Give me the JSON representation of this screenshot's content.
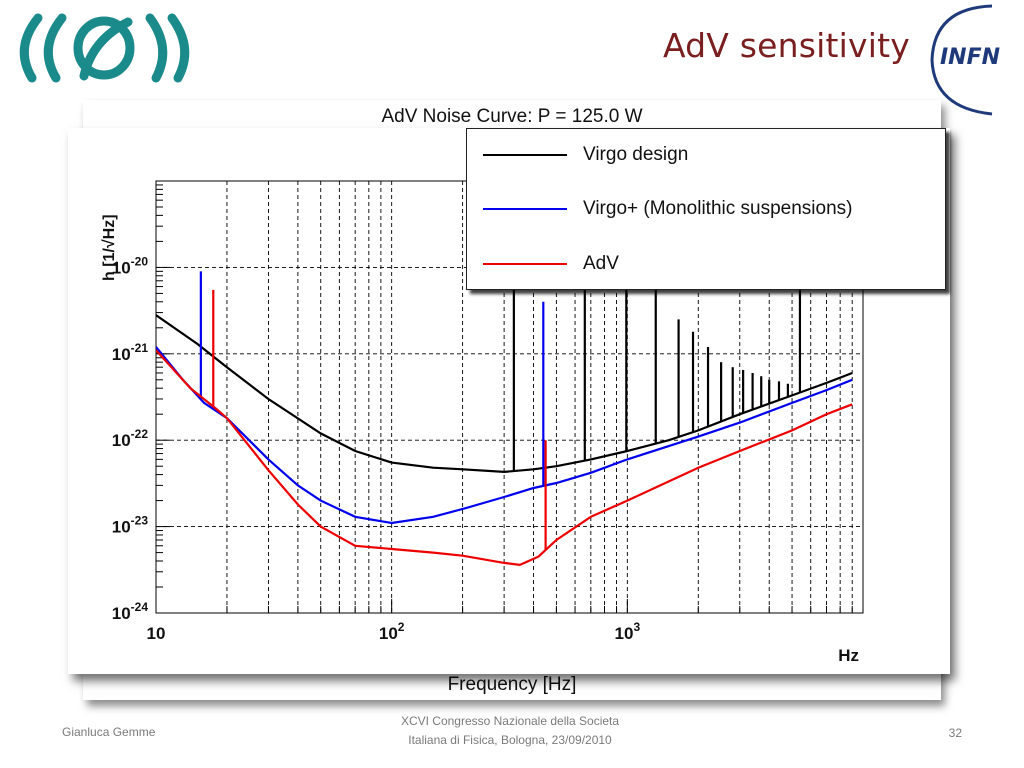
{
  "slide": {
    "title": "AdV sensitivity",
    "footer_author": "Gianluca Gemme",
    "footer_center_line1": "XCVI Congresso Nazionale della Societa",
    "footer_center_line2": "Italiana di Fisica, Bologna, 23/09/2010",
    "page_number": "32",
    "logo_right_text": "INFN"
  },
  "colors": {
    "title": "#7a1f1f",
    "virgo_logo": "#1a8a8a",
    "infn_logo": "#1f3a7a"
  },
  "background_chart": {
    "title": "AdV Noise Curve: P   = 125.0 W",
    "xlabel": "Frequency [Hz]"
  },
  "chart_data": {
    "type": "line",
    "title": "",
    "xlabel": "Hz",
    "ylabel": "h [1/√Hz]",
    "x_scale": "log",
    "y_scale": "log",
    "xlim": [
      10,
      10000
    ],
    "ylim": [
      1e-24,
      1e-19
    ],
    "x_ticks": [
      {
        "value": 10,
        "base": "10",
        "exp": ""
      },
      {
        "value": 100,
        "base": "10",
        "exp": "2"
      },
      {
        "value": 1000,
        "base": "10",
        "exp": "3"
      }
    ],
    "y_ticks": [
      {
        "value": 1e-24,
        "base": "10",
        "exp": "-24"
      },
      {
        "value": 1e-23,
        "base": "10",
        "exp": "-23"
      },
      {
        "value": 1e-22,
        "base": "10",
        "exp": "-22"
      },
      {
        "value": 1e-21,
        "base": "10",
        "exp": "-21"
      },
      {
        "value": 1e-20,
        "base": "10",
        "exp": "-20"
      }
    ],
    "grid": true,
    "legend_position": "top-right",
    "series": [
      {
        "name": "Virgo design",
        "color": "#000000",
        "points": [
          [
            10,
            2.8e-21
          ],
          [
            15,
            1.3e-21
          ],
          [
            20,
            7e-22
          ],
          [
            30,
            3e-22
          ],
          [
            50,
            1.2e-22
          ],
          [
            70,
            7.5e-23
          ],
          [
            100,
            5.5e-23
          ],
          [
            150,
            4.8e-23
          ],
          [
            200,
            4.6e-23
          ],
          [
            300,
            4.3e-23
          ],
          [
            400,
            4.6e-23
          ],
          [
            500,
            5e-23
          ],
          [
            700,
            6e-23
          ],
          [
            1000,
            7.5e-23
          ],
          [
            1500,
            1e-22
          ],
          [
            2000,
            1.3e-22
          ],
          [
            3000,
            2e-22
          ],
          [
            5000,
            3.3e-22
          ],
          [
            7000,
            4.6e-22
          ],
          [
            9000,
            6e-22
          ]
        ],
        "spikes": [
          [
            330,
            9e-21
          ],
          [
            660,
            9e-21
          ],
          [
            990,
            9e-21
          ],
          [
            1320,
            9e-21
          ],
          [
            1650,
            2.5e-21
          ],
          [
            1900,
            1.8e-21
          ],
          [
            2200,
            1.2e-21
          ],
          [
            2500,
            8e-22
          ],
          [
            2800,
            7e-22
          ],
          [
            3100,
            6.5e-22
          ],
          [
            3400,
            6e-22
          ],
          [
            3700,
            5.5e-22
          ],
          [
            4000,
            5e-22
          ],
          [
            4400,
            4.8e-22
          ],
          [
            4800,
            4.5e-22
          ],
          [
            5400,
            9e-21
          ]
        ]
      },
      {
        "name": "Virgo+ (Monolithic suspensions)",
        "color": "#0000ee",
        "points": [
          [
            10,
            1.2e-21
          ],
          [
            13,
            5e-22
          ],
          [
            16,
            2.7e-22
          ],
          [
            20,
            1.8e-22
          ],
          [
            30,
            6e-23
          ],
          [
            40,
            3e-23
          ],
          [
            50,
            2e-23
          ],
          [
            70,
            1.3e-23
          ],
          [
            100,
            1.1e-23
          ],
          [
            150,
            1.3e-23
          ],
          [
            200,
            1.6e-23
          ],
          [
            300,
            2.2e-23
          ],
          [
            400,
            2.8e-23
          ],
          [
            500,
            3.2e-23
          ],
          [
            700,
            4.2e-23
          ],
          [
            1000,
            6e-23
          ],
          [
            2000,
            1.1e-22
          ],
          [
            3000,
            1.6e-22
          ],
          [
            5000,
            2.7e-22
          ],
          [
            7000,
            3.8e-22
          ],
          [
            9000,
            5e-22
          ]
        ],
        "spikes": [
          [
            15.5,
            9e-21
          ],
          [
            440,
            4e-21
          ],
          [
            880,
            5.5e-23
          ]
        ]
      },
      {
        "name": "AdV",
        "color": "#ee0000",
        "points": [
          [
            10,
            1.1e-21
          ],
          [
            14,
            4e-22
          ],
          [
            18,
            2.3e-22
          ],
          [
            20,
            1.8e-22
          ],
          [
            30,
            4.5e-23
          ],
          [
            40,
            1.8e-23
          ],
          [
            50,
            1e-23
          ],
          [
            70,
            6e-24
          ],
          [
            100,
            5.5e-24
          ],
          [
            150,
            5e-24
          ],
          [
            200,
            4.6e-24
          ],
          [
            300,
            3.8e-24
          ],
          [
            350,
            3.6e-24
          ],
          [
            420,
            4.5e-24
          ],
          [
            500,
            7e-24
          ],
          [
            700,
            1.3e-23
          ],
          [
            1000,
            2e-23
          ],
          [
            2000,
            4.8e-23
          ],
          [
            3000,
            7.5e-23
          ],
          [
            5000,
            1.3e-22
          ],
          [
            7000,
            2e-22
          ],
          [
            9000,
            2.6e-22
          ]
        ],
        "spikes": [
          [
            17.5,
            5.5e-21
          ],
          [
            450,
            1e-22
          ]
        ]
      }
    ]
  }
}
